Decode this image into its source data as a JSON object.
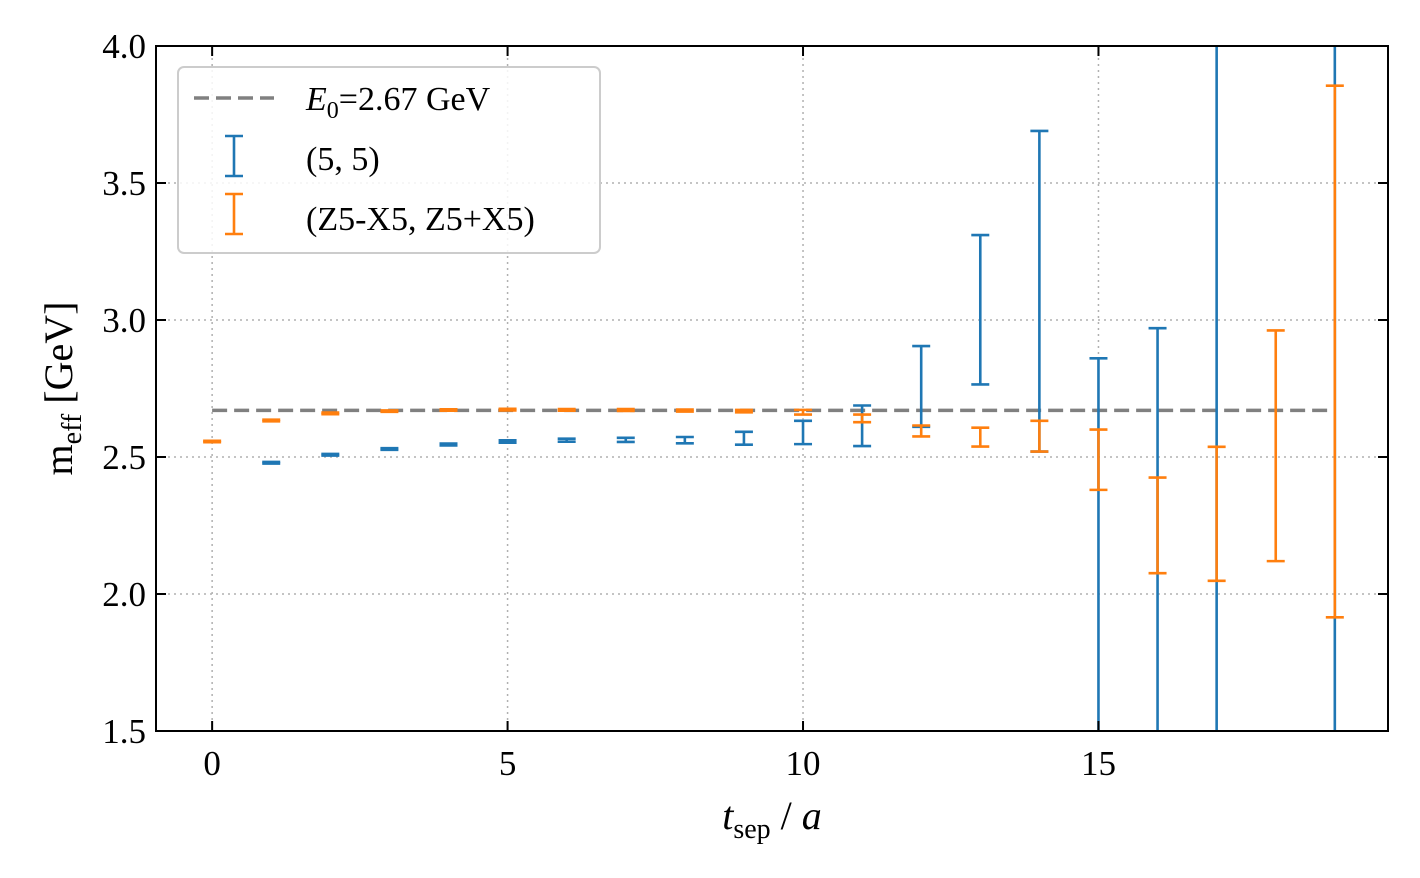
{
  "chart_data": {
    "type": "errorbar",
    "xlabel": {
      "main": "t",
      "sub": "sep",
      "rest": " / ",
      "var": "a"
    },
    "ylabel": {
      "main": "m",
      "sub": "eff",
      "rest": " [GeV]"
    },
    "xlim": [
      -0.95,
      19.9
    ],
    "ylim": [
      1.5,
      4.0
    ],
    "xticks": [
      0,
      5,
      10,
      15
    ],
    "yticks": [
      1.5,
      2.0,
      2.5,
      3.0,
      3.5,
      4.0
    ],
    "ytick_labels": [
      "1.5",
      "2.0",
      "2.5",
      "3.0",
      "3.5",
      "4.0"
    ],
    "grid": true,
    "grid_style": "dotted",
    "legend_position": "top-left",
    "reference_line": {
      "label_var": "E",
      "label_sub": "0",
      "label_rest": "=2.67 GeV",
      "y": 2.67,
      "x_range": [
        0,
        18.9
      ],
      "color": "#808080",
      "style": "dashed"
    },
    "series": [
      {
        "name": "(5, 5)",
        "color": "#1f77b4",
        "points": [
          {
            "x": 1,
            "lo": 2.476,
            "hi": 2.482
          },
          {
            "x": 2,
            "lo": 2.505,
            "hi": 2.511
          },
          {
            "x": 3,
            "lo": 2.526,
            "hi": 2.532
          },
          {
            "x": 4,
            "lo": 2.542,
            "hi": 2.549
          },
          {
            "x": 5,
            "lo": 2.552,
            "hi": 2.561
          },
          {
            "x": 6,
            "lo": 2.556,
            "hi": 2.567
          },
          {
            "x": 7,
            "lo": 2.555,
            "hi": 2.57
          },
          {
            "x": 8,
            "lo": 2.55,
            "hi": 2.573
          },
          {
            "x": 9,
            "lo": 2.545,
            "hi": 2.592
          },
          {
            "x": 10,
            "lo": 2.547,
            "hi": 2.632
          },
          {
            "x": 11,
            "lo": 2.54,
            "hi": 2.688
          },
          {
            "x": 12,
            "lo": 2.61,
            "hi": 2.905
          },
          {
            "x": 13,
            "lo": 2.765,
            "hi": 3.31
          },
          {
            "x": 14,
            "lo": 2.52,
            "hi": 3.69
          },
          {
            "x": 15,
            "lo": 1.4,
            "hi": 2.86
          },
          {
            "x": 16,
            "lo": 1.4,
            "hi": 2.97
          },
          {
            "x": 17,
            "lo": 1.4,
            "hi": 4.1
          },
          {
            "x": 19,
            "lo": 1.4,
            "hi": 4.1
          }
        ]
      },
      {
        "name": "(Z5-X5, Z5+X5)",
        "color": "#ff7f0e",
        "points": [
          {
            "x": 0,
            "lo": 2.554,
            "hi": 2.559
          },
          {
            "x": 1,
            "lo": 2.63,
            "hi": 2.636
          },
          {
            "x": 2,
            "lo": 2.656,
            "hi": 2.662
          },
          {
            "x": 3,
            "lo": 2.665,
            "hi": 2.67
          },
          {
            "x": 4,
            "lo": 2.669,
            "hi": 2.674
          },
          {
            "x": 5,
            "lo": 2.67,
            "hi": 2.676
          },
          {
            "x": 6,
            "lo": 2.669,
            "hi": 2.675
          },
          {
            "x": 7,
            "lo": 2.668,
            "hi": 2.675
          },
          {
            "x": 8,
            "lo": 2.666,
            "hi": 2.673
          },
          {
            "x": 9,
            "lo": 2.663,
            "hi": 2.672
          },
          {
            "x": 10,
            "lo": 2.655,
            "hi": 2.672
          },
          {
            "x": 11,
            "lo": 2.627,
            "hi": 2.655
          },
          {
            "x": 12,
            "lo": 2.575,
            "hi": 2.615
          },
          {
            "x": 13,
            "lo": 2.538,
            "hi": 2.607
          },
          {
            "x": 14,
            "lo": 2.52,
            "hi": 2.632
          },
          {
            "x": 15,
            "lo": 2.38,
            "hi": 2.6
          },
          {
            "x": 16,
            "lo": 2.076,
            "hi": 2.425
          },
          {
            "x": 17,
            "lo": 2.048,
            "hi": 2.537
          },
          {
            "x": 18,
            "lo": 2.12,
            "hi": 2.962
          },
          {
            "x": 19,
            "lo": 1.915,
            "hi": 3.855
          }
        ]
      }
    ]
  }
}
